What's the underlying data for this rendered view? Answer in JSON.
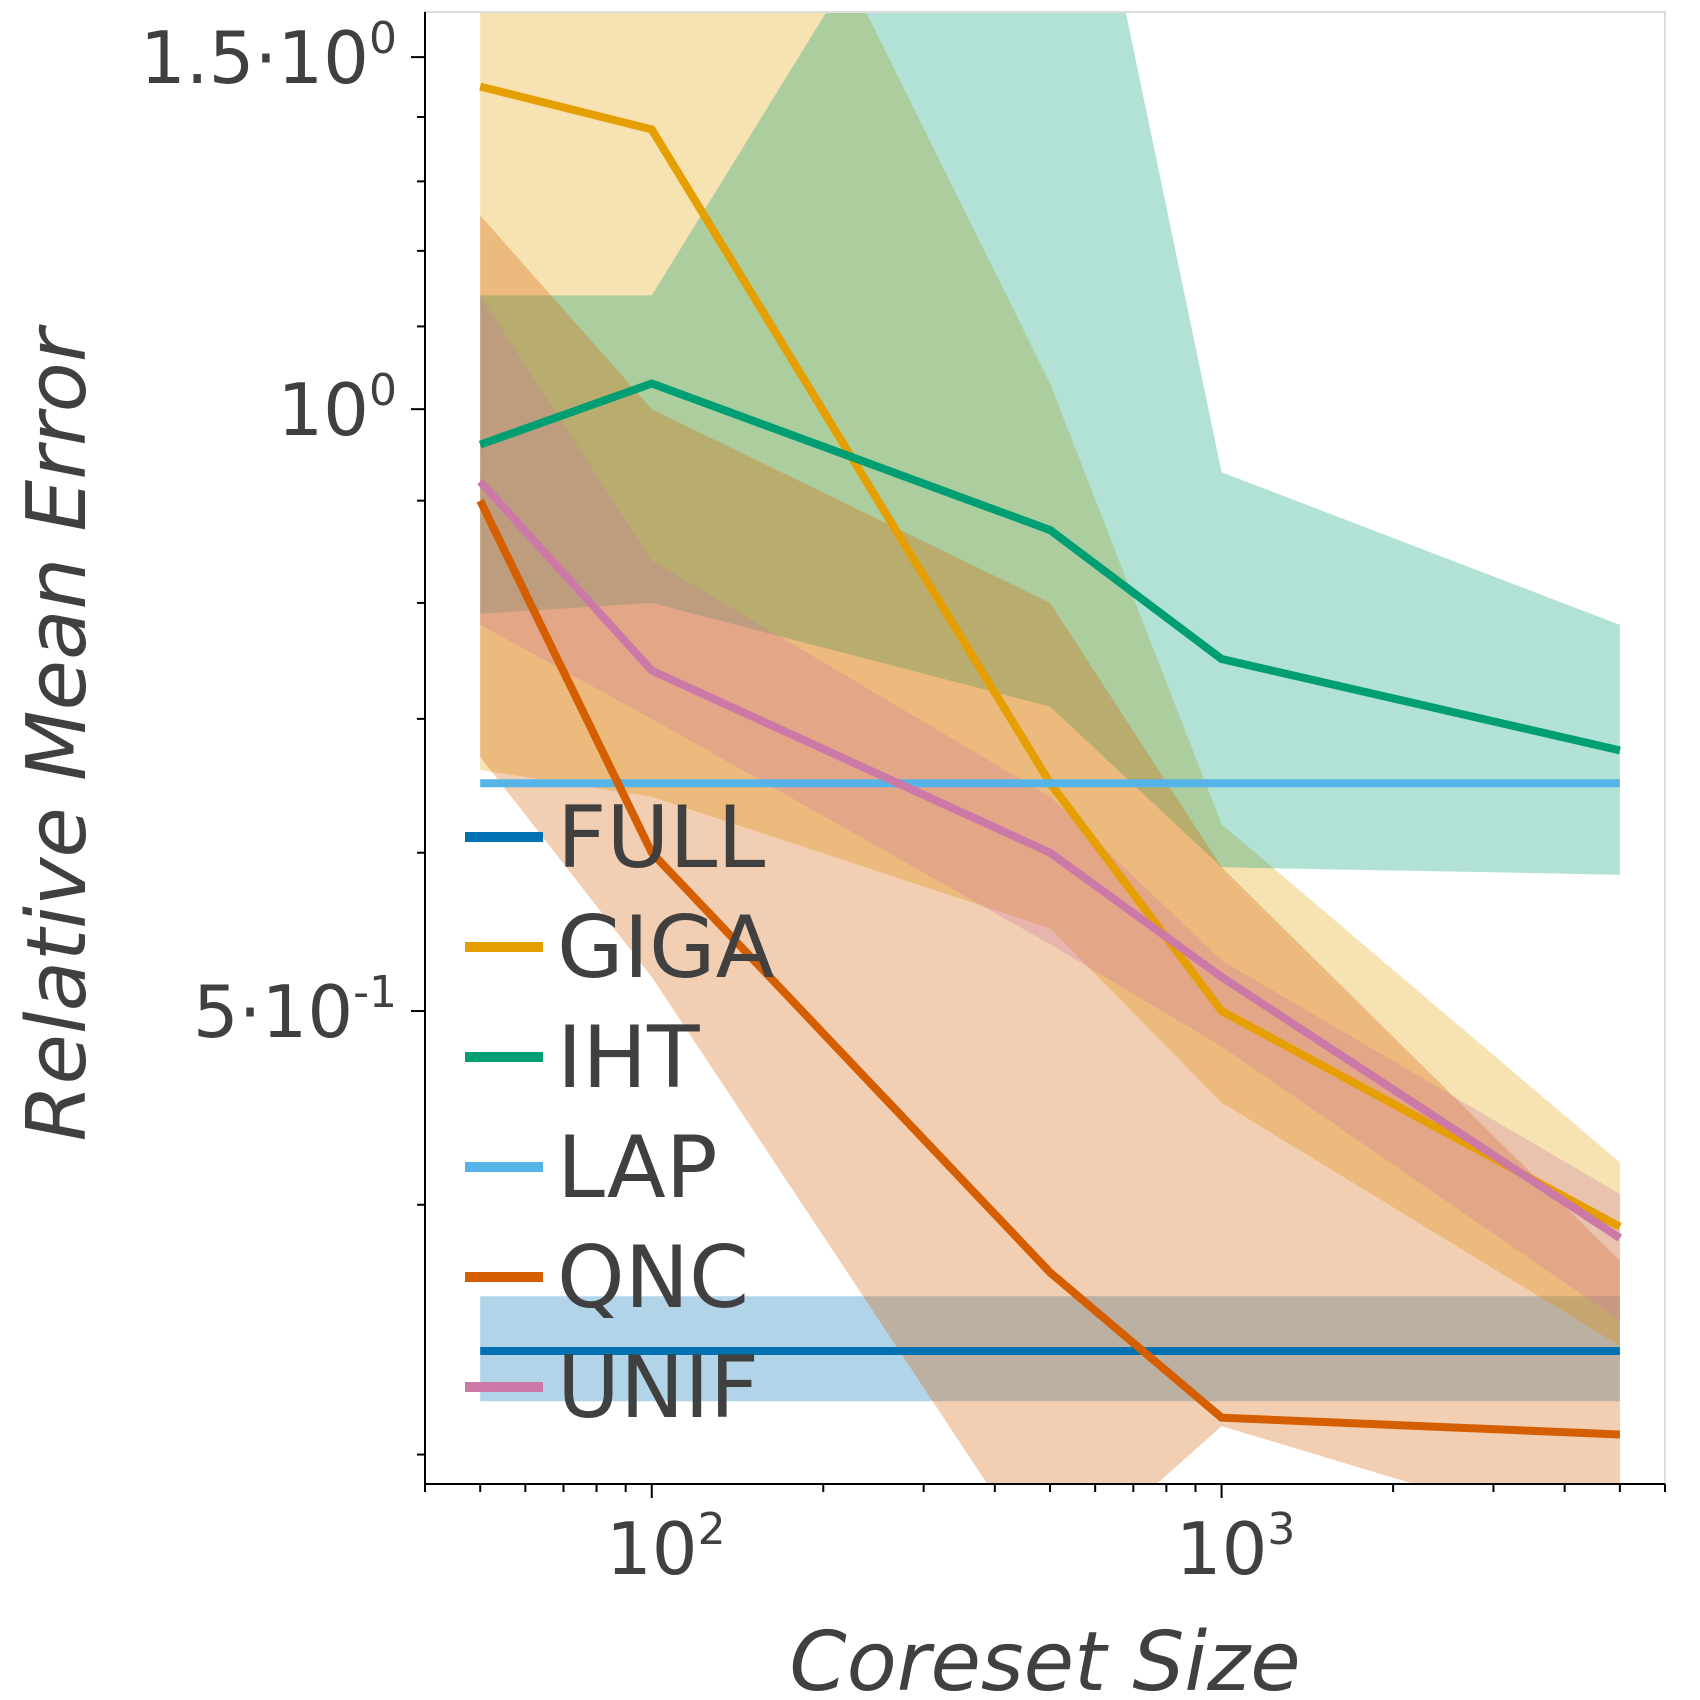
{
  "chart_data": {
    "type": "line",
    "xscale": "log",
    "yscale": "log",
    "xlabel": "Coreset Size",
    "ylabel": "Relative Mean Error",
    "xlim": [
      40,
      6000
    ],
    "ylim": [
      0.29,
      1.58
    ],
    "x": [
      50,
      100,
      500,
      1000,
      5000
    ],
    "x_ticks": [
      {
        "value": 100,
        "base": "10",
        "exp": "2"
      },
      {
        "value": 1000,
        "base": "10",
        "exp": "3"
      }
    ],
    "y_ticks": [
      {
        "value": 1.5,
        "base": "1.5·10",
        "exp": "0"
      },
      {
        "value": 1.0,
        "base": "10",
        "exp": "0"
      },
      {
        "value": 0.5,
        "base": "5·10",
        "exp": "-1"
      }
    ],
    "grid": false,
    "legend_position": "lower-left",
    "series": [
      {
        "name": "FULL",
        "color": "#0072B2",
        "values": [
          0.338,
          0.338,
          0.338,
          0.338,
          0.338
        ],
        "lower": [
          0.319,
          0.319,
          0.319,
          0.319,
          0.319
        ],
        "upper": [
          0.36,
          0.36,
          0.36,
          0.36,
          0.36
        ]
      },
      {
        "name": "GIGA",
        "color": "#E69F00",
        "values": [
          1.45,
          1.38,
          0.65,
          0.5,
          0.39
        ],
        "lower": [
          0.66,
          0.64,
          0.55,
          0.45,
          0.34
        ],
        "upper": [
          2.6,
          2.6,
          1.03,
          0.62,
          0.42
        ]
      },
      {
        "name": "IHT",
        "color": "#009E73",
        "values": [
          0.96,
          1.03,
          0.87,
          0.75,
          0.675
        ],
        "lower": [
          0.79,
          0.8,
          0.71,
          0.59,
          0.585
        ],
        "upper": [
          1.14,
          1.14,
          2.4,
          0.93,
          0.78
        ]
      },
      {
        "name": "LAP",
        "color": "#56B4E9",
        "values": [
          0.65,
          0.65,
          0.65,
          0.65,
          0.65
        ],
        "lower": [
          0.65,
          0.65,
          0.65,
          0.65,
          0.65
        ],
        "upper": [
          0.65,
          0.65,
          0.65,
          0.65,
          0.65
        ]
      },
      {
        "name": "QNC",
        "color": "#D55E00",
        "values": [
          0.9,
          0.6,
          0.37,
          0.313,
          0.307
        ],
        "lower": [
          0.67,
          0.52,
          0.26,
          0.31,
          0.27
        ],
        "upper": [
          1.25,
          1.0,
          0.8,
          0.59,
          0.375
        ]
      },
      {
        "name": "UNIF",
        "color": "#CC79A7",
        "values": [
          0.92,
          0.74,
          0.6,
          0.52,
          0.385
        ],
        "lower": [
          0.78,
          0.7,
          0.54,
          0.48,
          0.35
        ],
        "upper": [
          1.14,
          0.84,
          0.64,
          0.53,
          0.405
        ]
      }
    ]
  }
}
